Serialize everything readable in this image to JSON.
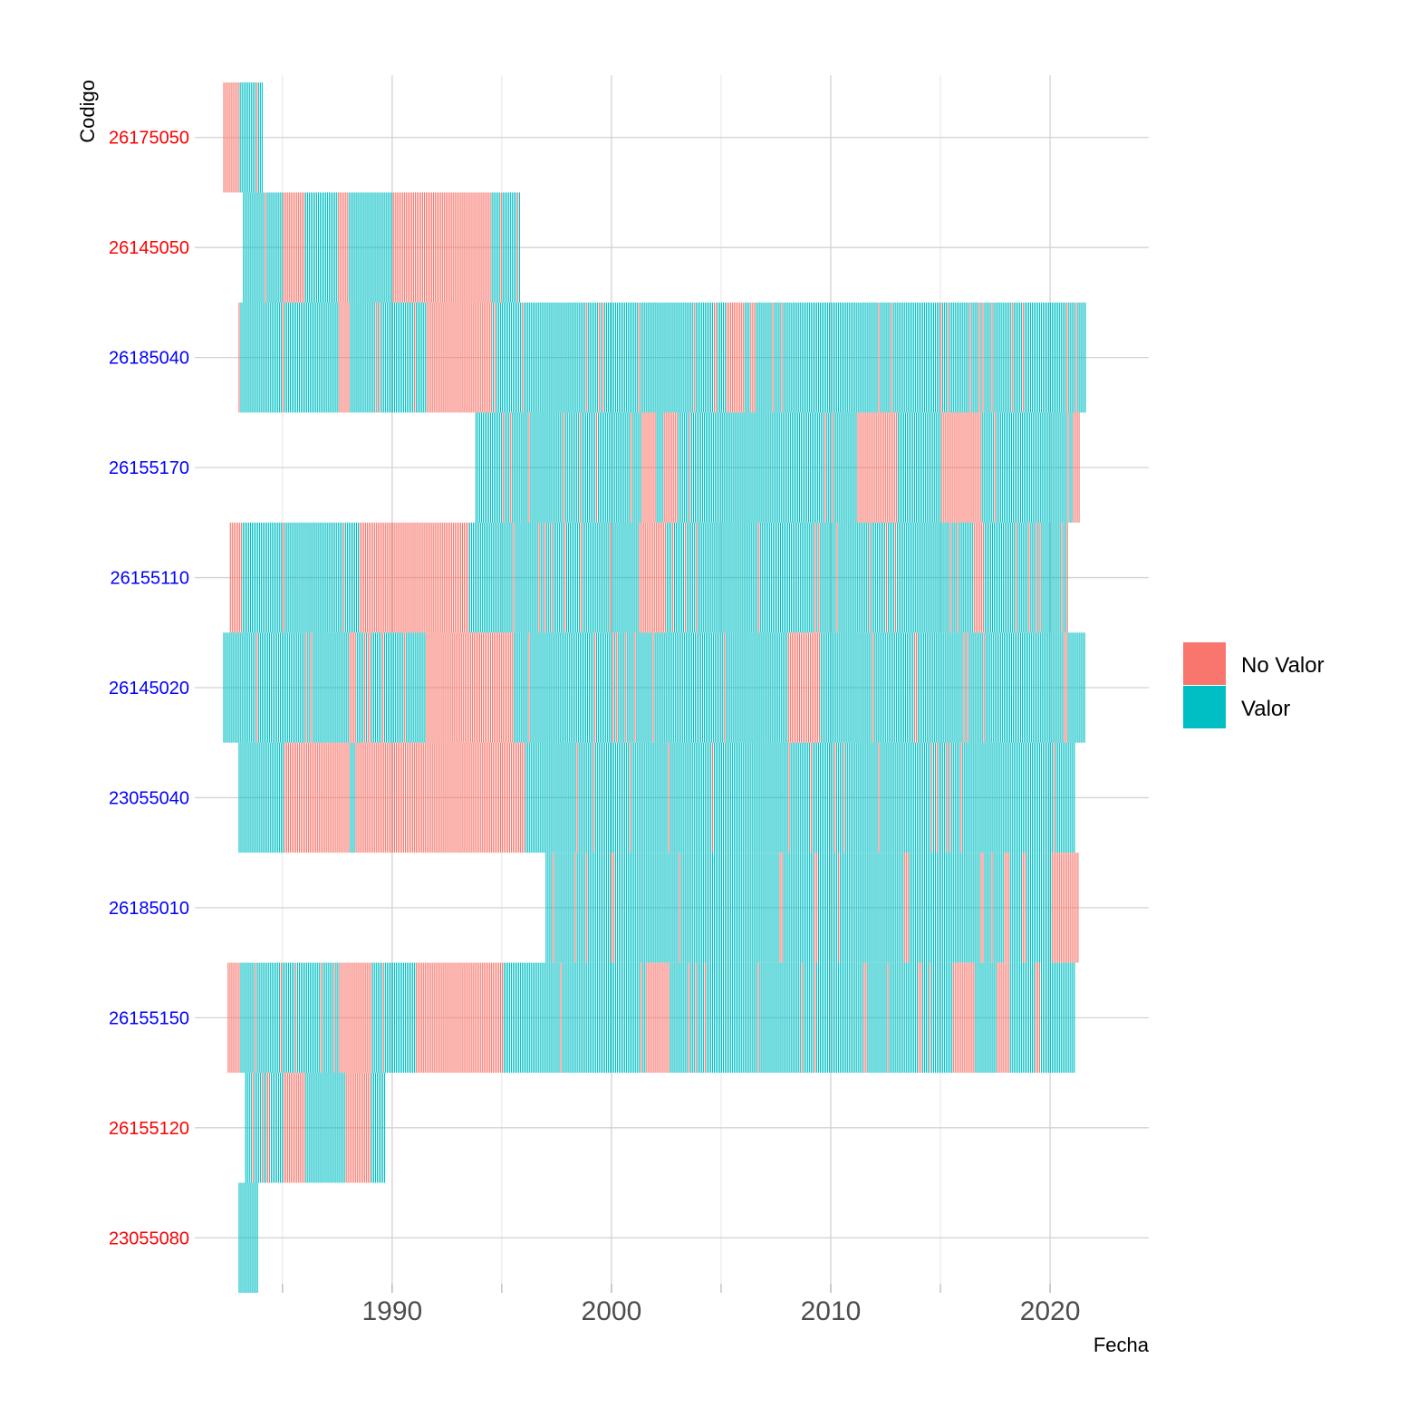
{
  "chart_data": {
    "type": "heatmap",
    "title": "",
    "xlabel": "Fecha",
    "ylabel": "Codigo",
    "x_ticks": [
      1990,
      2000,
      2010,
      2020
    ],
    "xlim": [
      1981.0,
      2024.5
    ],
    "grid": true,
    "legend_position": "right",
    "categories": [
      "26175050",
      "26145050",
      "26185040",
      "26155170",
      "26155110",
      "26145020",
      "23055040",
      "26185010",
      "26155150",
      "26155120",
      "23055080"
    ],
    "category_label_colors": [
      "#ff0000",
      "#ff0000",
      "#0000ff",
      "#0000ff",
      "#0000ff",
      "#0000ff",
      "#0000ff",
      "#0000ff",
      "#0000ff",
      "#ff0000",
      "#ff0000"
    ],
    "series": [
      {
        "name": "No Valor",
        "color": "#F8766D"
      },
      {
        "name": "Valor",
        "color": "#00BFC4"
      }
    ],
    "station_ranges": [
      {
        "codigo": "26175050",
        "start": 1982.3,
        "end": 1984.1
      },
      {
        "codigo": "26145050",
        "start": 1983.2,
        "end": 1995.8
      },
      {
        "codigo": "26185040",
        "start": 1983.0,
        "end": 2021.6
      },
      {
        "codigo": "26155170",
        "start": 1993.8,
        "end": 2021.3
      },
      {
        "codigo": "26155110",
        "start": 1982.6,
        "end": 2020.8
      },
      {
        "codigo": "26145020",
        "start": 1982.3,
        "end": 2021.6
      },
      {
        "codigo": "23055040",
        "start": 1983.0,
        "end": 2021.1
      },
      {
        "codigo": "26185010",
        "start": 1997.0,
        "end": 2021.3
      },
      {
        "codigo": "26155150",
        "start": 1982.5,
        "end": 2021.1
      },
      {
        "codigo": "26155120",
        "start": 1983.3,
        "end": 1989.7
      },
      {
        "codigo": "23055080",
        "start": 1983.0,
        "end": 1983.9
      }
    ],
    "no_valor_periods": [
      {
        "codigo": "26175050",
        "intervals": [
          [
            1982.3,
            1983.0
          ]
        ]
      },
      {
        "codigo": "26145050",
        "intervals": [
          [
            1985.0,
            1986.0
          ],
          [
            1987.5,
            1988.0
          ],
          [
            1990.0,
            1994.5
          ]
        ]
      },
      {
        "codigo": "26185040",
        "intervals": [
          [
            1987.5,
            1988.0
          ],
          [
            1991.5,
            1994.5
          ],
          [
            2005.2,
            2006.0
          ],
          [
            2006.3,
            2006.5
          ]
        ]
      },
      {
        "codigo": "26155170",
        "intervals": [
          [
            2001.3,
            2002.0
          ],
          [
            2002.3,
            2003.0
          ],
          [
            2011.2,
            2013.0
          ],
          [
            2015.0,
            2016.8
          ],
          [
            2021.0,
            2021.3
          ]
        ]
      },
      {
        "codigo": "26155110",
        "intervals": [
          [
            1982.6,
            1983.1
          ],
          [
            1988.5,
            1993.5
          ],
          [
            2001.2,
            2002.5
          ],
          [
            2016.5,
            2017.0
          ]
        ]
      },
      {
        "codigo": "26145020",
        "intervals": [
          [
            1988.0,
            1988.3
          ],
          [
            1991.5,
            1995.5
          ],
          [
            2008.0,
            2009.5
          ]
        ]
      },
      {
        "codigo": "23055040",
        "intervals": [
          [
            1985.0,
            1988.0
          ],
          [
            1988.3,
            1996.0
          ]
        ]
      },
      {
        "codigo": "26185010",
        "intervals": [
          [
            2013.3,
            2013.5
          ],
          [
            2017.9,
            2018.1
          ],
          [
            2020.0,
            2021.3
          ]
        ]
      },
      {
        "codigo": "26155150",
        "intervals": [
          [
            1982.5,
            1983.0
          ],
          [
            1987.5,
            1989.0
          ],
          [
            1991.0,
            1995.0
          ],
          [
            2001.5,
            2002.5
          ],
          [
            2015.5,
            2016.5
          ],
          [
            2017.5,
            2018.1
          ],
          [
            2019.3,
            2019.5
          ]
        ]
      },
      {
        "codigo": "26155120",
        "intervals": [
          [
            1985.0,
            1986.0
          ],
          [
            1987.8,
            1989.0
          ]
        ]
      },
      {
        "codigo": "23055080",
        "intervals": []
      }
    ]
  }
}
